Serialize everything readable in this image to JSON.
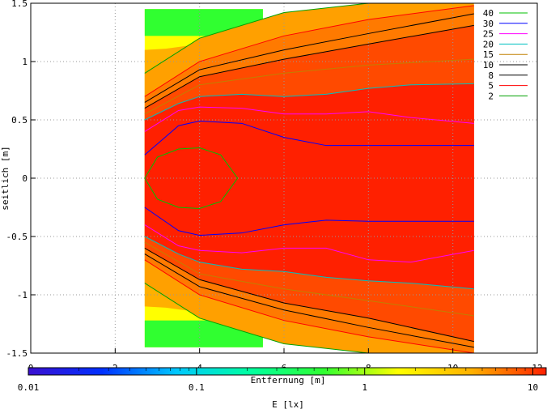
{
  "chart_data": {
    "type": "heatmap",
    "xlabel": "Entfernung [m]",
    "ylabel": "seitlich [m]",
    "xlim": [
      0,
      12
    ],
    "ylim": [
      -1.5,
      1.5
    ],
    "x_ticks": [
      "0",
      "2",
      "4",
      "6",
      "8",
      "10",
      "12"
    ],
    "y_ticks": [
      "1.5",
      "1",
      "0.5",
      "0",
      "-0.5",
      "-1",
      "-1.5"
    ],
    "grid": true,
    "legend_position": "top-right",
    "colorbar": {
      "label": "E [lx]",
      "scale": "log",
      "range": [
        0.01,
        12
      ],
      "ticks": [
        "0.01",
        "0.1",
        "1",
        "10"
      ],
      "colors": [
        "#3a10d0",
        "#0030ff",
        "#00c8ff",
        "#00ffa0",
        "#30ff30",
        "#ffff00",
        "#ffb000",
        "#ff2000"
      ]
    },
    "contours": [
      {
        "name": "40",
        "level": 40,
        "color": "#00c000",
        "halfwidth_x": [
          2.7,
          3.0,
          3.5,
          4.0,
          4.5,
          4.9
        ],
        "halfwidth_y": [
          0.0,
          0.18,
          0.25,
          0.26,
          0.2,
          0.0
        ]
      },
      {
        "name": "30",
        "level": 30,
        "color": "#0000ff",
        "x": [
          2.7,
          3.5,
          4.0,
          5.0,
          6.0,
          7.0,
          8.0,
          9.0,
          10.5
        ],
        "y_upper": [
          0.2,
          0.45,
          0.49,
          0.47,
          0.35,
          0.28,
          0.28,
          0.28,
          0.28
        ],
        "y_lower": [
          -0.25,
          -0.45,
          -0.49,
          -0.47,
          -0.4,
          -0.36,
          -0.37,
          -0.37,
          -0.37
        ]
      },
      {
        "name": "25",
        "level": 25,
        "color": "#ff00ff",
        "x": [
          2.7,
          3.5,
          4.0,
          5.0,
          6.0,
          7.0,
          8.0,
          9.0,
          10.5
        ],
        "y_upper": [
          0.4,
          0.58,
          0.61,
          0.6,
          0.55,
          0.55,
          0.57,
          0.52,
          0.47
        ],
        "y_lower": [
          -0.4,
          -0.58,
          -0.62,
          -0.64,
          -0.6,
          -0.6,
          -0.7,
          -0.72,
          -0.62
        ]
      },
      {
        "name": "20",
        "level": 20,
        "color": "#00c0c0",
        "x": [
          2.7,
          3.5,
          4.0,
          5.0,
          6.0,
          7.0,
          8.0,
          9.0,
          10.5
        ],
        "y_upper": [
          0.5,
          0.64,
          0.7,
          0.72,
          0.7,
          0.72,
          0.77,
          0.8,
          0.81
        ],
        "y_lower": [
          -0.5,
          -0.65,
          -0.72,
          -0.78,
          -0.8,
          -0.85,
          -0.88,
          -0.9,
          -0.95
        ]
      },
      {
        "name": "15",
        "level": 15,
        "color": "#c08000",
        "x": [
          2.7,
          4.0,
          6.0,
          8.0,
          10.5
        ],
        "y_upper": [
          0.55,
          0.8,
          0.9,
          0.97,
          1.02
        ],
        "y_lower": [
          -0.55,
          -0.82,
          -0.95,
          -1.05,
          -1.18
        ]
      },
      {
        "name": "10",
        "level": 10,
        "color": "#000000",
        "x": [
          2.7,
          4.0,
          6.0,
          8.0,
          10.5
        ],
        "y_upper": [
          0.6,
          0.87,
          1.02,
          1.15,
          1.31
        ],
        "y_lower": [
          -0.6,
          -0.87,
          -1.07,
          -1.2,
          -1.4
        ]
      },
      {
        "name": "8",
        "level": 8,
        "color": "#000000",
        "x": [
          2.7,
          4.0,
          6.0,
          8.0,
          10.5
        ],
        "y_upper": [
          0.65,
          0.93,
          1.1,
          1.24,
          1.41
        ],
        "y_lower": [
          -0.65,
          -0.93,
          -1.13,
          -1.28,
          -1.45
        ]
      },
      {
        "name": "5",
        "level": 5,
        "color": "#ff0000",
        "x": [
          2.7,
          4.0,
          6.0,
          8.0,
          10.5
        ],
        "y_upper": [
          0.7,
          1.0,
          1.22,
          1.36,
          1.48
        ],
        "y_lower": [
          -0.7,
          -1.0,
          -1.22,
          -1.36,
          -1.5
        ]
      },
      {
        "name": "2",
        "level": 2,
        "color": "#00a000",
        "x": [
          2.7,
          4.0,
          6.0,
          8.0,
          10.5
        ],
        "y_upper": [
          0.9,
          1.2,
          1.42,
          1.5,
          1.5
        ],
        "y_lower": [
          -0.9,
          -1.2,
          -1.42,
          -1.5,
          -1.5
        ]
      }
    ]
  }
}
